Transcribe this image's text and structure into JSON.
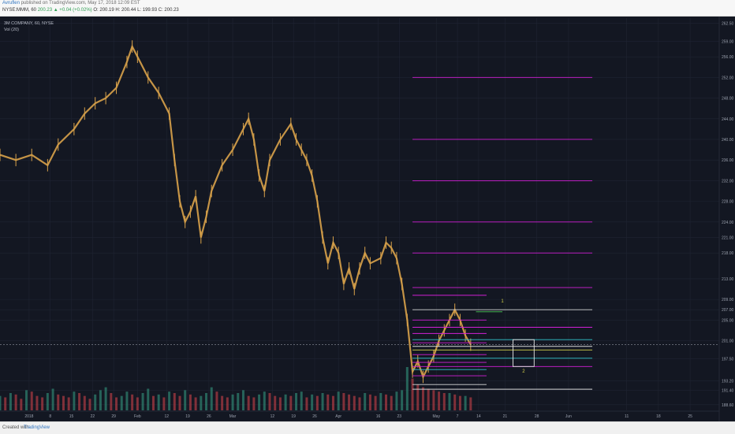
{
  "header": {
    "author": "Avruflen",
    "published": "published on TradingView.com, May 17, 2018 12:09 EST",
    "symbol_line": "NYSE:MMM, 60",
    "change": "200.23 ▲ +0.04 (+0.02%)",
    "ohlc": "O: 200.19 H: 200.44 L: 199.93 C: 200.23"
  },
  "legend": {
    "title": "3M COMPANY, 60, NYSE",
    "volume": "Vol (20)"
  },
  "footer": {
    "created_with": "Created with",
    "brand": "TradingView"
  },
  "colors": {
    "background": "#131722",
    "candle": "#d9a24a",
    "magenta": "#d21fd6",
    "cyan": "#33c4cc",
    "yellow": "#d4d24a",
    "green": "#4fd05a",
    "white": "#d8d8d8",
    "vol_up": "#2e7d6c",
    "vol_down": "#a63a42"
  },
  "chart_data": {
    "type": "line",
    "title": "3M COMPANY, 60, NYSE",
    "xlabel": "",
    "ylabel": "",
    "x_ticks": [
      "2018",
      "8",
      "15",
      "22",
      "29",
      "Feb",
      "12",
      "19",
      "26",
      "Mar",
      "12",
      "19",
      "26",
      "Apr",
      "16",
      "23",
      "May",
      "7",
      "14",
      "21",
      "28",
      "Jun",
      "11",
      "18",
      "25"
    ],
    "y_ticks": [
      188.6,
      191.4,
      193.2,
      197.5,
      201.0,
      205.0,
      207.0,
      209.0,
      213.0,
      218.0,
      221.0,
      224.0,
      228.0,
      232.0,
      236.0,
      240.0,
      244.0,
      248.0,
      252.0,
      256.0,
      259.0,
      262.5
    ],
    "ylim": [
      187.5,
      263.5
    ],
    "last_price": 200.23,
    "price_path": [
      [
        0,
        237
      ],
      [
        3,
        236
      ],
      [
        6,
        237
      ],
      [
        9,
        235
      ],
      [
        11,
        239
      ],
      [
        14,
        242
      ],
      [
        16,
        245
      ],
      [
        18,
        247
      ],
      [
        20,
        248
      ],
      [
        22,
        250
      ],
      [
        24,
        255
      ],
      [
        25,
        258
      ],
      [
        26,
        256
      ],
      [
        28,
        252
      ],
      [
        30,
        249
      ],
      [
        32,
        245
      ],
      [
        33,
        236
      ],
      [
        34,
        228
      ],
      [
        35,
        224
      ],
      [
        36,
        226
      ],
      [
        37,
        229
      ],
      [
        38,
        221
      ],
      [
        39,
        225
      ],
      [
        40,
        230
      ],
      [
        42,
        235
      ],
      [
        44,
        238
      ],
      [
        46,
        242
      ],
      [
        47,
        244
      ],
      [
        48,
        240
      ],
      [
        49,
        233
      ],
      [
        50,
        230
      ],
      [
        51,
        236
      ],
      [
        53,
        240
      ],
      [
        55,
        243
      ],
      [
        56,
        240
      ],
      [
        57,
        238
      ],
      [
        58,
        236
      ],
      [
        59,
        233
      ],
      [
        60,
        228
      ],
      [
        61,
        221
      ],
      [
        62,
        216
      ],
      [
        63,
        220
      ],
      [
        64,
        218
      ],
      [
        65,
        212
      ],
      [
        66,
        215
      ],
      [
        67,
        211
      ],
      [
        68,
        215
      ],
      [
        69,
        218
      ],
      [
        70,
        216
      ],
      [
        72,
        217
      ],
      [
        73,
        220
      ],
      [
        74,
        219
      ],
      [
        75,
        217
      ],
      [
        76,
        212
      ],
      [
        77,
        205
      ],
      [
        78,
        195
      ],
      [
        79,
        197
      ],
      [
        80,
        194
      ],
      [
        81,
        196
      ],
      [
        82,
        198
      ],
      [
        83,
        201
      ],
      [
        84,
        203
      ],
      [
        85,
        205
      ],
      [
        86,
        207
      ],
      [
        87,
        205
      ],
      [
        88,
        202
      ],
      [
        89,
        200.23
      ]
    ],
    "volume": [
      10,
      9,
      12,
      11,
      8,
      14,
      13,
      10,
      9,
      12,
      15,
      11,
      10,
      9,
      13,
      12,
      10,
      8,
      11,
      14,
      16,
      12,
      9,
      10,
      13,
      11,
      9,
      12,
      15,
      10,
      11,
      9,
      13,
      12,
      10,
      14,
      11,
      9,
      10,
      12,
      16,
      13,
      10,
      9,
      11,
      12,
      14,
      10,
      9,
      11,
      13,
      12,
      10,
      9,
      11,
      10,
      12,
      13,
      9,
      11,
      10,
      12,
      11,
      10,
      13,
      12,
      11,
      10,
      9,
      12,
      11,
      10,
      12,
      11,
      10,
      13,
      14,
      30,
      22,
      18,
      16,
      15,
      14,
      13,
      12,
      12,
      11,
      10,
      10,
      9
    ],
    "levels": [
      {
        "y": 252.0,
        "color": "magenta",
        "x0": 78,
        "x1": 112
      },
      {
        "y": 240.0,
        "color": "magenta",
        "x0": 78,
        "x1": 112
      },
      {
        "y": 232.0,
        "color": "magenta",
        "x0": 78,
        "x1": 112
      },
      {
        "y": 224.0,
        "color": "magenta",
        "x0": 78,
        "x1": 112
      },
      {
        "y": 218.0,
        "color": "magenta",
        "x0": 78,
        "x1": 112
      },
      {
        "y": 211.3,
        "color": "magenta",
        "x0": 78,
        "x1": 112
      },
      {
        "y": 209.8,
        "color": "magenta",
        "x0": 78,
        "x1": 92
      },
      {
        "y": 207.0,
        "color": "white",
        "x0": 78,
        "x1": 112
      },
      {
        "y": 206.6,
        "color": "green",
        "x0": 90,
        "x1": 95
      },
      {
        "y": 205.0,
        "color": "magenta",
        "x0": 78,
        "x1": 92
      },
      {
        "y": 203.6,
        "color": "magenta",
        "x0": 78,
        "x1": 112
      },
      {
        "y": 202.4,
        "color": "magenta",
        "x0": 78,
        "x1": 92
      },
      {
        "y": 201.2,
        "color": "cyan",
        "x0": 78,
        "x1": 112
      },
      {
        "y": 200.6,
        "color": "magenta",
        "x0": 78,
        "x1": 92
      },
      {
        "y": 199.9,
        "color": "white",
        "x0": 78,
        "x1": 112
      },
      {
        "y": 199.2,
        "color": "yellow",
        "x0": 78,
        "x1": 112
      },
      {
        "y": 198.3,
        "color": "magenta",
        "x0": 78,
        "x1": 92
      },
      {
        "y": 197.6,
        "color": "cyan",
        "x0": 78,
        "x1": 112
      },
      {
        "y": 196.8,
        "color": "magenta",
        "x0": 78,
        "x1": 92
      },
      {
        "y": 196.0,
        "color": "magenta",
        "x0": 78,
        "x1": 112
      },
      {
        "y": 195.4,
        "color": "cyan",
        "x0": 78,
        "x1": 92
      },
      {
        "y": 194.2,
        "color": "magenta",
        "x0": 78,
        "x1": 92
      },
      {
        "y": 192.5,
        "color": "white",
        "x0": 78,
        "x1": 92
      },
      {
        "y": 191.6,
        "color": "white",
        "x0": 78,
        "x1": 112
      }
    ],
    "projection_box": {
      "x0": 97,
      "x1": 101,
      "y_top": 201.2,
      "y_bottom": 196.0
    },
    "annotations": [
      {
        "text": "1",
        "x": 95,
        "y": 208.4,
        "color": "yellow"
      },
      {
        "text": "2",
        "x": 99,
        "y": 194.8,
        "color": "yellow"
      }
    ],
    "x_tick_positions": [
      5.5,
      9.5,
      13.5,
      17.5,
      21.5,
      26,
      31.5,
      35.5,
      39.5,
      44,
      51.5,
      55.5,
      59.5,
      64,
      71.5,
      75.5,
      82.5,
      86.5,
      90.5,
      95.5,
      101.5,
      107.5,
      118.5,
      124.5,
      130.5
    ]
  }
}
